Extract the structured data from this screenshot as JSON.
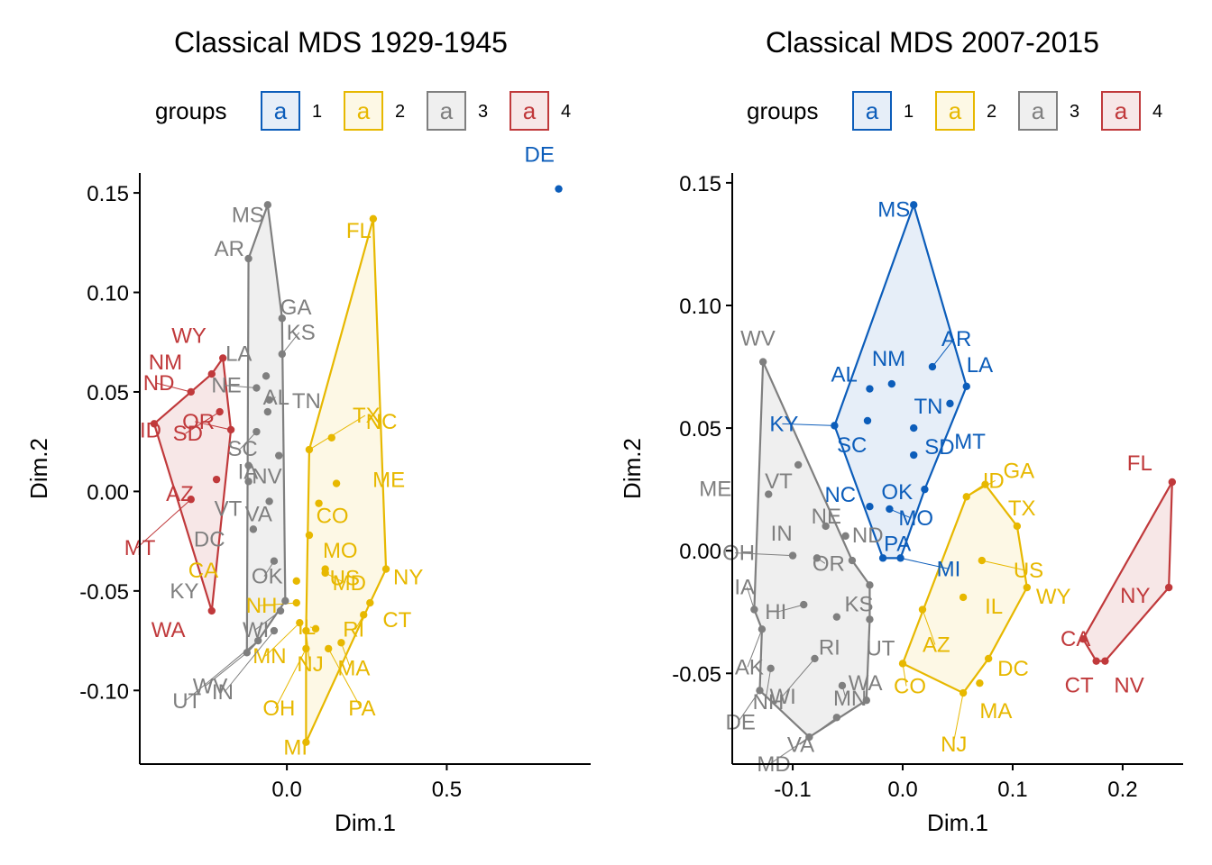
{
  "colors": {
    "1": "#0C5DBA",
    "2": "#E7B800",
    "3": "#7F7F7F",
    "4": "#C0393B"
  },
  "legend": {
    "title": "groups",
    "glyph": "a",
    "labels": [
      "1",
      "2",
      "3",
      "4"
    ]
  },
  "chart_data": [
    {
      "type": "scatter",
      "title": "Classical MDS 1929-1945",
      "xlabel": "Dim.1",
      "ylabel": "Dim.2",
      "xlim": [
        -0.46,
        0.95
      ],
      "ylim": [
        -0.137,
        0.16
      ],
      "xticks": [
        0.0,
        0.5
      ],
      "xtick_labels": [
        "0.0",
        "0.5"
      ],
      "yticks": [
        0.15,
        0.1,
        0.05,
        0.0,
        -0.05,
        -0.1
      ],
      "ytick_labels": [
        "0.15",
        "0.10",
        "0.05",
        "0.00",
        "-0.05",
        "-0.10"
      ],
      "legend_position": "top",
      "grid": false,
      "points": [
        {
          "label": "DE",
          "x": 0.85,
          "y": 0.152,
          "group": 1
        },
        {
          "label": "FL",
          "x": 0.27,
          "y": 0.137,
          "group": 2
        },
        {
          "label": "TX",
          "x": 0.07,
          "y": 0.021,
          "group": 2
        },
        {
          "label": "NC",
          "x": 0.14,
          "y": 0.027,
          "group": 2
        },
        {
          "label": "ME",
          "x": 0.155,
          "y": 0.004,
          "group": 2
        },
        {
          "label": "CO",
          "x": 0.1,
          "y": -0.006,
          "group": 2
        },
        {
          "label": "MO",
          "x": 0.07,
          "y": -0.022,
          "group": 2
        },
        {
          "label": "US",
          "x": 0.12,
          "y": -0.039,
          "group": 2
        },
        {
          "label": "NY",
          "x": 0.31,
          "y": -0.039,
          "group": 2
        },
        {
          "label": "MD",
          "x": 0.12,
          "y": -0.041,
          "group": 2
        },
        {
          "label": "CA",
          "x": 0.03,
          "y": -0.045,
          "group": 2
        },
        {
          "label": "NH",
          "x": 0.03,
          "y": -0.056,
          "group": 2
        },
        {
          "label": "CT",
          "x": 0.26,
          "y": -0.056,
          "group": 2
        },
        {
          "label": "IL",
          "x": 0.09,
          "y": -0.069,
          "group": 2
        },
        {
          "label": "RI",
          "x": 0.24,
          "y": -0.062,
          "group": 2
        },
        {
          "label": "MN",
          "x": 0.04,
          "y": -0.066,
          "group": 2
        },
        {
          "label": "NJ",
          "x": 0.06,
          "y": -0.07,
          "group": 2
        },
        {
          "label": "MA",
          "x": 0.17,
          "y": -0.076,
          "group": 2
        },
        {
          "label": "PA",
          "x": 0.13,
          "y": -0.079,
          "group": 2
        },
        {
          "label": "OH",
          "x": 0.06,
          "y": -0.079,
          "group": 2
        },
        {
          "label": "MI",
          "x": 0.06,
          "y": -0.126,
          "group": 2
        },
        {
          "label": "MS",
          "x": -0.06,
          "y": 0.144,
          "group": 3
        },
        {
          "label": "AR",
          "x": -0.12,
          "y": 0.117,
          "group": 3
        },
        {
          "label": "GA",
          "x": -0.015,
          "y": 0.087,
          "group": 3
        },
        {
          "label": "KS",
          "x": -0.015,
          "y": 0.069,
          "group": 3
        },
        {
          "label": "LA",
          "x": -0.065,
          "y": 0.058,
          "group": 3
        },
        {
          "label": "NE",
          "x": -0.095,
          "y": 0.052,
          "group": 3
        },
        {
          "label": "AL",
          "x": -0.055,
          "y": 0.046,
          "group": 3
        },
        {
          "label": "TN",
          "x": -0.06,
          "y": 0.04,
          "group": 3
        },
        {
          "label": "SC",
          "x": -0.095,
          "y": 0.03,
          "group": 3
        },
        {
          "label": "NV",
          "x": -0.025,
          "y": 0.018,
          "group": 3
        },
        {
          "label": "IA",
          "x": -0.12,
          "y": 0.013,
          "group": 3
        },
        {
          "label": "VT",
          "x": -0.12,
          "y": 0.005,
          "group": 3
        },
        {
          "label": "VA",
          "x": -0.055,
          "y": -0.005,
          "group": 3
        },
        {
          "label": "DC",
          "x": -0.105,
          "y": -0.019,
          "group": 3
        },
        {
          "label": "OK",
          "x": -0.04,
          "y": -0.035,
          "group": 3
        },
        {
          "label": "KY",
          "x": -0.005,
          "y": -0.055,
          "group": 3
        },
        {
          "label": "WI",
          "x": -0.02,
          "y": -0.06,
          "group": 3
        },
        {
          "label": "WV",
          "x": -0.125,
          "y": -0.081,
          "group": 3
        },
        {
          "label": "UT",
          "x": -0.09,
          "y": -0.075,
          "group": 3
        },
        {
          "label": "IN",
          "x": -0.04,
          "y": -0.07,
          "group": 3
        },
        {
          "label": "WY",
          "x": -0.2,
          "y": 0.067,
          "group": 4
        },
        {
          "label": "NM",
          "x": -0.235,
          "y": 0.059,
          "group": 4
        },
        {
          "label": "ND",
          "x": -0.3,
          "y": 0.05,
          "group": 4
        },
        {
          "label": "SD",
          "x": -0.21,
          "y": 0.04,
          "group": 4
        },
        {
          "label": "ID",
          "x": -0.415,
          "y": 0.034,
          "group": 4
        },
        {
          "label": "OR",
          "x": -0.175,
          "y": 0.031,
          "group": 4
        },
        {
          "label": "AZ",
          "x": -0.22,
          "y": 0.006,
          "group": 4
        },
        {
          "label": "MT",
          "x": -0.3,
          "y": -0.004,
          "group": 4
        },
        {
          "label": "WA",
          "x": -0.235,
          "y": -0.06,
          "group": 4
        }
      ],
      "hulls": [
        {
          "group": 2,
          "labels": [
            "FL",
            "NY",
            "CT",
            "MI",
            "NJ",
            "TX"
          ]
        },
        {
          "group": 3,
          "labels": [
            "MS",
            "GA",
            "KY",
            "UT",
            "WV",
            "AR"
          ]
        },
        {
          "group": 4,
          "labels": [
            "WY",
            "OR",
            "WA",
            "ID",
            "NM"
          ]
        }
      ]
    },
    {
      "type": "scatter",
      "title": "Classical MDS 2007-2015",
      "xlabel": "Dim.1",
      "ylabel": "Dim.2",
      "xlim": [
        -0.155,
        0.255
      ],
      "ylim": [
        -0.087,
        0.154
      ],
      "xticks": [
        -0.1,
        0.0,
        0.1,
        0.2
      ],
      "xtick_labels": [
        "-0.1",
        "0.0",
        "0.1",
        "0.2"
      ],
      "yticks": [
        0.15,
        0.1,
        0.05,
        0.0,
        -0.05
      ],
      "ytick_labels": [
        "0.15",
        "0.10",
        "0.05",
        "0.00",
        "-0.05"
      ],
      "legend_position": "top",
      "grid": false,
      "points": [
        {
          "label": "MS",
          "x": 0.01,
          "y": 0.141,
          "group": 1
        },
        {
          "label": "AR",
          "x": 0.027,
          "y": 0.075,
          "group": 1
        },
        {
          "label": "LA",
          "x": 0.058,
          "y": 0.067,
          "group": 1
        },
        {
          "label": "NM",
          "x": -0.01,
          "y": 0.068,
          "group": 1
        },
        {
          "label": "AL",
          "x": -0.03,
          "y": 0.066,
          "group": 1
        },
        {
          "label": "TN",
          "x": 0.043,
          "y": 0.06,
          "group": 1
        },
        {
          "label": "SC",
          "x": -0.032,
          "y": 0.053,
          "group": 1
        },
        {
          "label": "KY",
          "x": -0.062,
          "y": 0.051,
          "group": 1
        },
        {
          "label": "MT",
          "x": 0.01,
          "y": 0.05,
          "group": 1
        },
        {
          "label": "SD",
          "x": 0.01,
          "y": 0.039,
          "group": 1
        },
        {
          "label": "OK",
          "x": 0.02,
          "y": 0.025,
          "group": 1
        },
        {
          "label": "NC",
          "x": -0.03,
          "y": 0.018,
          "group": 1
        },
        {
          "label": "MO",
          "x": -0.012,
          "y": 0.017,
          "group": 1
        },
        {
          "label": "PA",
          "x": -0.018,
          "y": -0.003,
          "group": 1
        },
        {
          "label": "MI",
          "x": -0.002,
          "y": -0.003,
          "group": 1
        },
        {
          "label": "GA",
          "x": 0.075,
          "y": 0.027,
          "group": 2
        },
        {
          "label": "TX",
          "x": 0.104,
          "y": 0.01,
          "group": 2
        },
        {
          "label": "US",
          "x": 0.072,
          "y": -0.004,
          "group": 2
        },
        {
          "label": "WY",
          "x": 0.113,
          "y": -0.015,
          "group": 2
        },
        {
          "label": "ID",
          "x": 0.058,
          "y": 0.022,
          "group": 2
        },
        {
          "label": "IL",
          "x": 0.055,
          "y": -0.019,
          "group": 2
        },
        {
          "label": "AZ",
          "x": 0.018,
          "y": -0.024,
          "group": 2
        },
        {
          "label": "DC",
          "x": 0.078,
          "y": -0.044,
          "group": 2
        },
        {
          "label": "MA",
          "x": 0.07,
          "y": -0.054,
          "group": 2
        },
        {
          "label": "CO",
          "x": 0.0,
          "y": -0.046,
          "group": 2
        },
        {
          "label": "NJ",
          "x": 0.055,
          "y": -0.058,
          "group": 2
        },
        {
          "label": "WV",
          "x": -0.127,
          "y": 0.077,
          "group": 3
        },
        {
          "label": "VT",
          "x": -0.095,
          "y": 0.035,
          "group": 3
        },
        {
          "label": "ME",
          "x": -0.122,
          "y": 0.023,
          "group": 3
        },
        {
          "label": "IN",
          "x": -0.07,
          "y": 0.01,
          "group": 3
        },
        {
          "label": "NE",
          "x": -0.052,
          "y": 0.006,
          "group": 3
        },
        {
          "label": "OH",
          "x": -0.1,
          "y": -0.002,
          "group": 3
        },
        {
          "label": "OR",
          "x": -0.078,
          "y": -0.003,
          "group": 3
        },
        {
          "label": "ND",
          "x": -0.046,
          "y": -0.004,
          "group": 3
        },
        {
          "label": "KS",
          "x": -0.03,
          "y": -0.014,
          "group": 3
        },
        {
          "label": "IA",
          "x": -0.135,
          "y": -0.024,
          "group": 3
        },
        {
          "label": "HI",
          "x": -0.09,
          "y": -0.022,
          "group": 3
        },
        {
          "label": "RI",
          "x": -0.06,
          "y": -0.027,
          "group": 3
        },
        {
          "label": "UT",
          "x": -0.03,
          "y": -0.028,
          "group": 3
        },
        {
          "label": "AK",
          "x": -0.128,
          "y": -0.032,
          "group": 3
        },
        {
          "label": "WI",
          "x": -0.08,
          "y": -0.044,
          "group": 3
        },
        {
          "label": "NH",
          "x": -0.12,
          "y": -0.048,
          "group": 3
        },
        {
          "label": "DE",
          "x": -0.13,
          "y": -0.057,
          "group": 3
        },
        {
          "label": "MN",
          "x": -0.055,
          "y": -0.055,
          "group": 3
        },
        {
          "label": "WA",
          "x": -0.033,
          "y": -0.061,
          "group": 3
        },
        {
          "label": "VA",
          "x": -0.06,
          "y": -0.068,
          "group": 3
        },
        {
          "label": "MD",
          "x": -0.085,
          "y": -0.076,
          "group": 3
        },
        {
          "label": "FL",
          "x": 0.245,
          "y": 0.028,
          "group": 4
        },
        {
          "label": "NY",
          "x": 0.242,
          "y": -0.015,
          "group": 4
        },
        {
          "label": "CA",
          "x": 0.164,
          "y": -0.036,
          "group": 4
        },
        {
          "label": "CT",
          "x": 0.176,
          "y": -0.045,
          "group": 4
        },
        {
          "label": "NV",
          "x": 0.184,
          "y": -0.045,
          "group": 4
        }
      ],
      "hulls": [
        {
          "group": 1,
          "labels": [
            "MS",
            "LA",
            "OK",
            "MI",
            "PA",
            "KY"
          ]
        },
        {
          "group": 2,
          "labels": [
            "GA",
            "TX",
            "WY",
            "DC",
            "NJ",
            "CO",
            "ID"
          ]
        },
        {
          "group": 3,
          "labels": [
            "WV",
            "ND",
            "KS",
            "UT",
            "WA",
            "MD",
            "DE",
            "AK",
            "IA"
          ]
        },
        {
          "group": 4,
          "labels": [
            "FL",
            "NY",
            "NV",
            "CT",
            "CA"
          ]
        }
      ]
    }
  ]
}
